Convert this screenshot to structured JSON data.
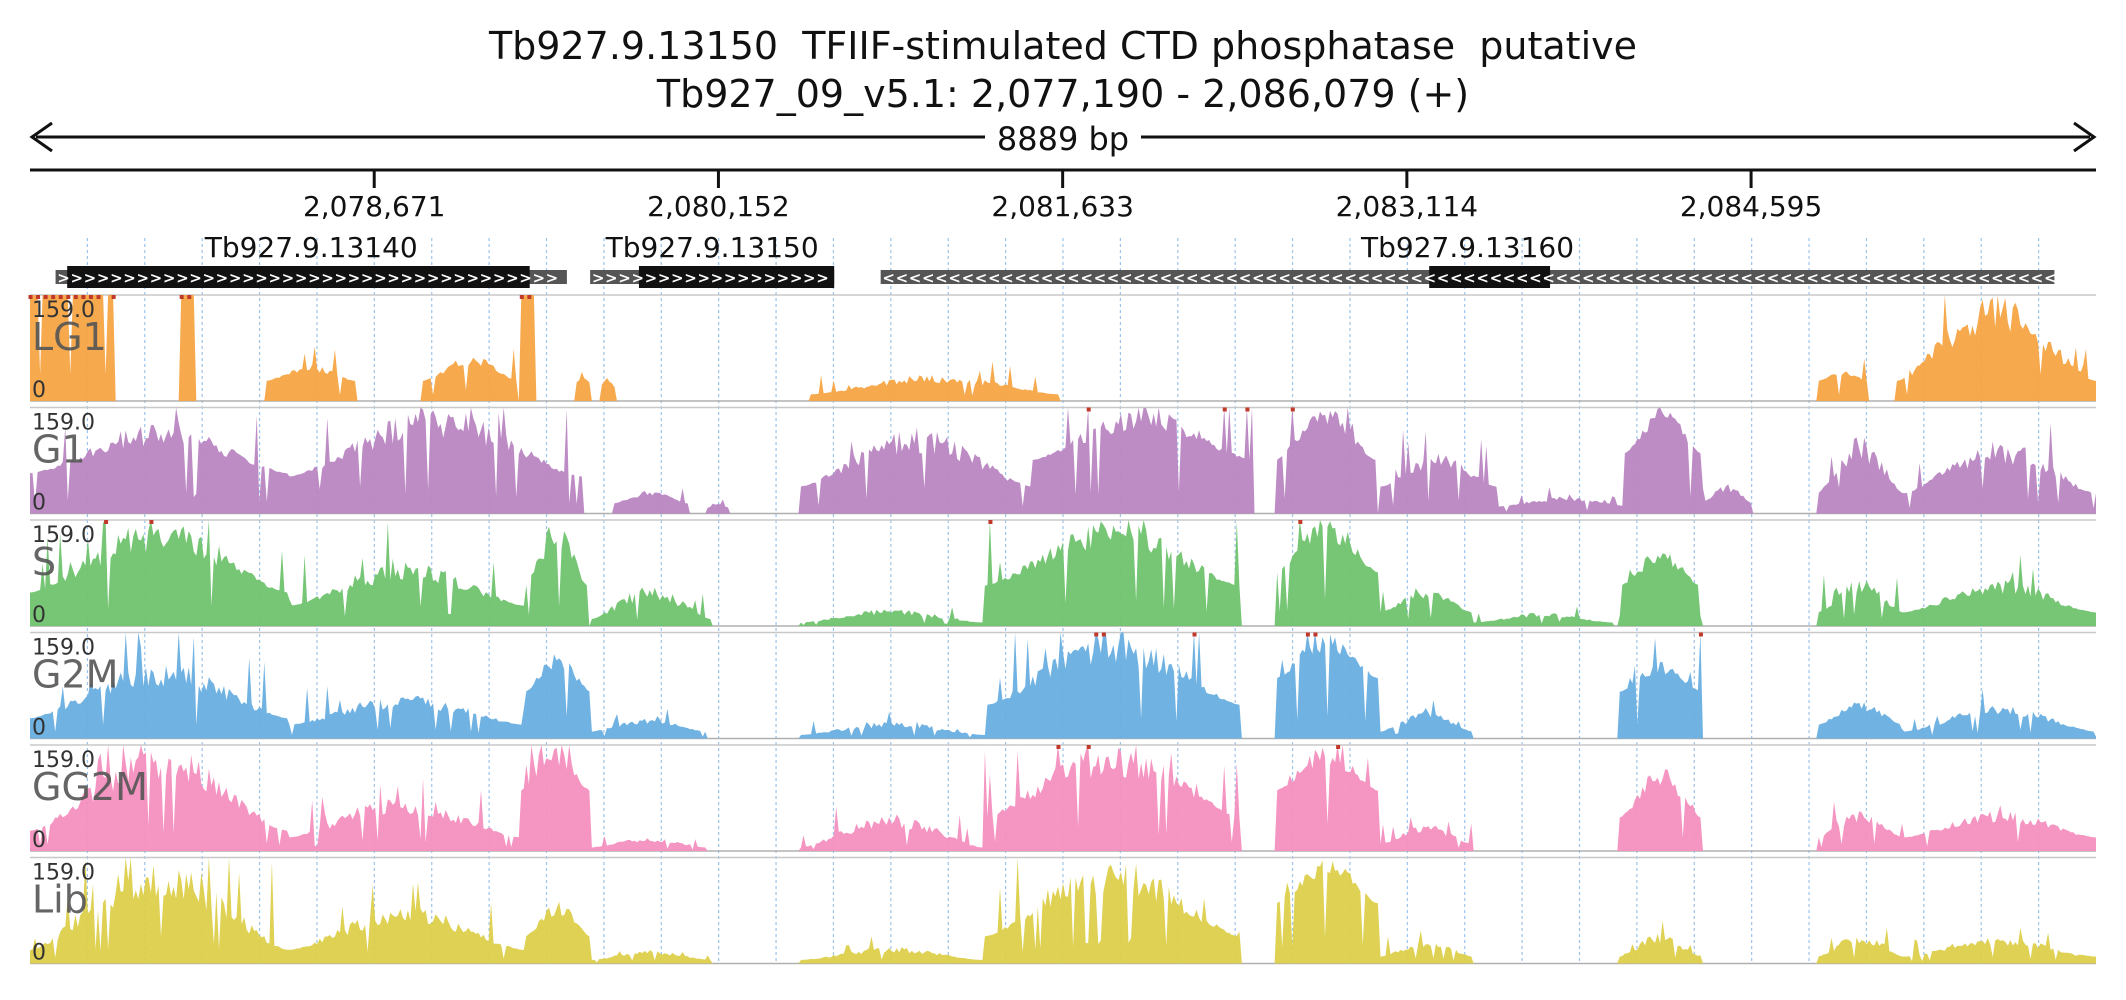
{
  "chart_data": {
    "type": "area",
    "title": "Tb927.9.13150  TFIIF-stimulated CTD phosphatase  putative",
    "subtitle": "Tb927_09_v5.1: 2,077,190 - 2,086,079 (+)",
    "span_label": "8889 bp",
    "region": {
      "start": 2077190,
      "end": 2086079,
      "strand": "+"
    },
    "ticks": [
      {
        "pos": 2078671,
        "label": "2,078,671"
      },
      {
        "pos": 2080152,
        "label": "2,080,152"
      },
      {
        "pos": 2081633,
        "label": "2,081,633"
      },
      {
        "pos": 2083114,
        "label": "2,083,114"
      },
      {
        "pos": 2084595,
        "label": "2,084,595"
      }
    ],
    "genes": [
      {
        "name": "Tb927.9.13140",
        "strand": "+",
        "start": 2077300,
        "end": 2079500,
        "cds_start": 2077350,
        "cds_end": 2079340
      },
      {
        "name": "Tb927.9.13150",
        "strand": "+",
        "start": 2079600,
        "end": 2080650,
        "cds_start": 2079810,
        "cds_end": 2080650
      },
      {
        "name": "Tb927.9.13160",
        "strand": "-",
        "start": 2080850,
        "end": 2085900,
        "cds_start": 2083210,
        "cds_end": 2083730
      }
    ],
    "y_range": [
      0,
      159.0
    ],
    "ymax_label": "159.0",
    "ymin_label": "0",
    "series": [
      {
        "name": "LG1",
        "color": "#f5a443",
        "peaks": [
          [
            2077190,
            2077550,
            0.0,
            159,
            159
          ],
          [
            2077830,
            2077900,
            0.0,
            159,
            159
          ],
          [
            2078200,
            2078590,
            0.0,
            30,
            55
          ],
          [
            2078880,
            2079290,
            0.0,
            30,
            70
          ],
          [
            2079300,
            2079360,
            0.0,
            159,
            159
          ],
          [
            2079540,
            2079600,
            0.0,
            28,
            35
          ],
          [
            2079640,
            2079710,
            0.0,
            20,
            35
          ],
          [
            2080550,
            2081620,
            0.0,
            10,
            40
          ],
          [
            2084880,
            2085100,
            0.0,
            30,
            45
          ],
          [
            2085220,
            2086079,
            0.0,
            30,
            159
          ]
        ]
      },
      {
        "name": "G1",
        "color": "#b986c2",
        "peaks": [
          [
            2077190,
            2078300,
            0.3,
            60,
            135
          ],
          [
            2078300,
            2079570,
            0.3,
            55,
            159
          ],
          [
            2079700,
            2080020,
            0.2,
            15,
            35
          ],
          [
            2080100,
            2080200,
            0.2,
            8,
            15
          ],
          [
            2080500,
            2081500,
            0.3,
            40,
            130
          ],
          [
            2081500,
            2082450,
            0.3,
            80,
            159
          ],
          [
            2082550,
            2082980,
            0.3,
            80,
            159
          ],
          [
            2083000,
            2083500,
            0.3,
            40,
            90
          ],
          [
            2083500,
            2084080,
            0.2,
            10,
            25
          ],
          [
            2084050,
            2084380,
            0.3,
            90,
            159
          ],
          [
            2084380,
            2084600,
            0.3,
            15,
            45
          ],
          [
            2084880,
            2085250,
            0.3,
            30,
            115
          ],
          [
            2085250,
            2086079,
            0.3,
            30,
            110
          ]
        ]
      },
      {
        "name": "S",
        "color": "#6fc36f",
        "peaks": [
          [
            2077190,
            2078300,
            0.3,
            50,
            159
          ],
          [
            2078300,
            2079320,
            0.3,
            30,
            95
          ],
          [
            2079320,
            2079590,
            0.3,
            60,
            159
          ],
          [
            2079600,
            2080120,
            0.2,
            10,
            60
          ],
          [
            2080500,
            2081290,
            0.2,
            5,
            25
          ],
          [
            2081290,
            2082400,
            0.3,
            60,
            159
          ],
          [
            2082550,
            2082990,
            0.3,
            80,
            159
          ],
          [
            2083000,
            2083400,
            0.3,
            20,
            55
          ],
          [
            2083400,
            2084000,
            0.2,
            5,
            20
          ],
          [
            2084030,
            2084380,
            0.3,
            60,
            115
          ],
          [
            2084880,
            2085250,
            0.3,
            20,
            70
          ],
          [
            2085250,
            2086079,
            0.3,
            20,
            70
          ]
        ]
      },
      {
        "name": "G2M",
        "color": "#68aee0",
        "peaks": [
          [
            2077190,
            2078300,
            0.3,
            30,
            115
          ],
          [
            2078300,
            2079320,
            0.3,
            20,
            65
          ],
          [
            2079320,
            2079600,
            0.3,
            70,
            130
          ],
          [
            2079600,
            2080100,
            0.2,
            10,
            30
          ],
          [
            2080500,
            2081300,
            0.2,
            5,
            25
          ],
          [
            2081300,
            2082400,
            0.3,
            50,
            159
          ],
          [
            2082550,
            2082990,
            0.3,
            90,
            159
          ],
          [
            2083000,
            2083400,
            0.3,
            10,
            40
          ],
          [
            2084030,
            2084380,
            0.3,
            70,
            115
          ],
          [
            2084880,
            2085250,
            0.3,
            20,
            55
          ],
          [
            2085250,
            2086079,
            0.3,
            10,
            50
          ]
        ]
      },
      {
        "name": "GG2M",
        "color": "#f48fbf",
        "peaks": [
          [
            2077190,
            2078300,
            0.3,
            30,
            159
          ],
          [
            2078300,
            2079300,
            0.3,
            20,
            80
          ],
          [
            2079300,
            2079600,
            0.3,
            90,
            159
          ],
          [
            2079600,
            2080100,
            0.2,
            5,
            20
          ],
          [
            2080500,
            2081290,
            0.2,
            5,
            55
          ],
          [
            2081290,
            2082400,
            0.3,
            50,
            159
          ],
          [
            2082550,
            2082990,
            0.3,
            90,
            159
          ],
          [
            2083000,
            2083400,
            0.3,
            10,
            40
          ],
          [
            2084030,
            2084380,
            0.3,
            50,
            125
          ],
          [
            2084880,
            2085250,
            0.3,
            20,
            60
          ],
          [
            2085250,
            2086079,
            0.3,
            20,
            60
          ]
        ]
      },
      {
        "name": "Lib",
        "color": "#dccf4a",
        "peaks": [
          [
            2077190,
            2078300,
            0.3,
            20,
            159
          ],
          [
            2078300,
            2079320,
            0.3,
            20,
            85
          ],
          [
            2079320,
            2079600,
            0.3,
            40,
            95
          ],
          [
            2079600,
            2080120,
            0.2,
            5,
            20
          ],
          [
            2080500,
            2081290,
            0.2,
            5,
            25
          ],
          [
            2081290,
            2082400,
            0.3,
            40,
            159
          ],
          [
            2082550,
            2082990,
            0.3,
            90,
            159
          ],
          [
            2083000,
            2083400,
            0.3,
            10,
            35
          ],
          [
            2084030,
            2084380,
            0.3,
            10,
            45
          ],
          [
            2084880,
            2085250,
            0.3,
            10,
            45
          ],
          [
            2085250,
            2086079,
            0.3,
            10,
            40
          ]
        ]
      }
    ]
  }
}
